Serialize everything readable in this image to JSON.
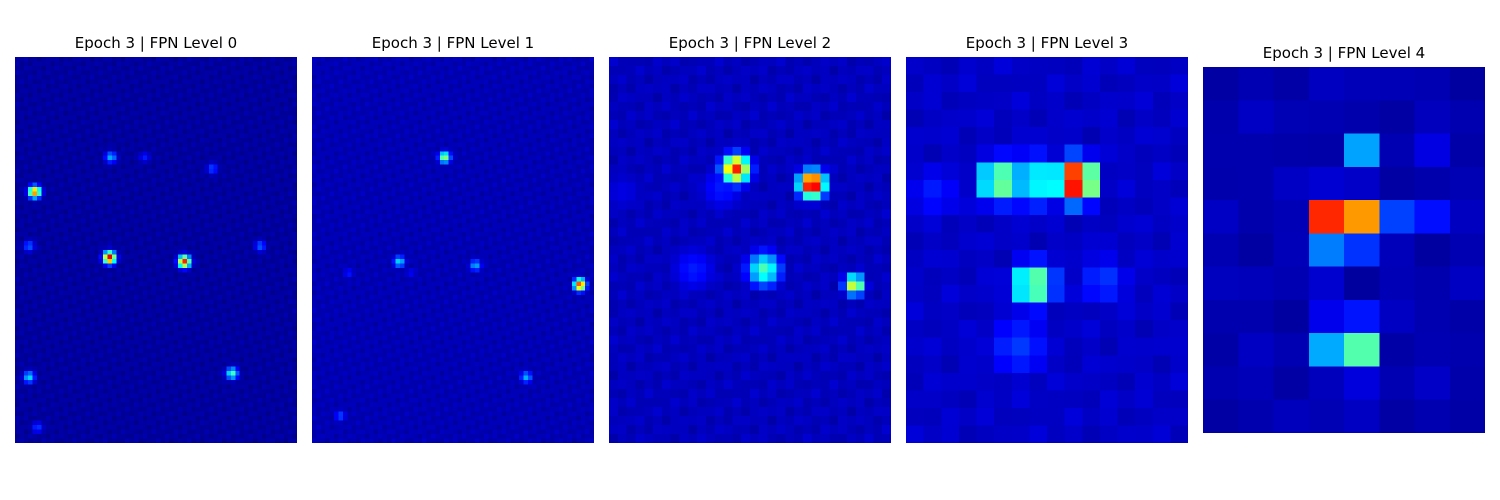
{
  "chart_data": [
    {
      "type": "heatmap",
      "title": "Epoch 3 | FPN Level 0",
      "colormap": "jet",
      "background_value": 0.03,
      "grid": false,
      "blobs": [
        {
          "x": 0.07,
          "y": 0.35,
          "value": 0.78
        },
        {
          "x": 0.335,
          "y": 0.52,
          "value": 0.92
        },
        {
          "x": 0.6,
          "y": 0.53,
          "value": 0.85
        },
        {
          "x": 0.77,
          "y": 0.82,
          "value": 0.45
        },
        {
          "x": 0.05,
          "y": 0.83,
          "value": 0.35
        },
        {
          "x": 0.34,
          "y": 0.26,
          "value": 0.3
        },
        {
          "x": 0.46,
          "y": 0.26,
          "value": 0.15
        },
        {
          "x": 0.05,
          "y": 0.49,
          "value": 0.22
        },
        {
          "x": 0.87,
          "y": 0.49,
          "value": 0.22
        },
        {
          "x": 0.7,
          "y": 0.29,
          "value": 0.2
        },
        {
          "x": 0.08,
          "y": 0.96,
          "value": 0.18
        }
      ]
    },
    {
      "type": "heatmap",
      "title": "Epoch 3 | FPN Level 1",
      "colormap": "jet",
      "background_value": 0.05,
      "grid": false,
      "blobs": [
        {
          "x": 0.47,
          "y": 0.26,
          "value": 0.55
        },
        {
          "x": 0.31,
          "y": 0.53,
          "value": 0.35
        },
        {
          "x": 0.58,
          "y": 0.54,
          "value": 0.3
        },
        {
          "x": 0.95,
          "y": 0.59,
          "value": 0.85
        },
        {
          "x": 0.76,
          "y": 0.83,
          "value": 0.3
        },
        {
          "x": 0.1,
          "y": 0.93,
          "value": 0.2
        },
        {
          "x": 0.13,
          "y": 0.56,
          "value": 0.15
        },
        {
          "x": 0.35,
          "y": 0.56,
          "value": 0.12
        }
      ]
    },
    {
      "type": "heatmap",
      "title": "Epoch 3 | FPN Level 2",
      "colormap": "jet",
      "rows": 43,
      "cols": 32,
      "background_value": 0.06,
      "grid": false,
      "blobs": [
        {
          "x": 0.45,
          "y": 0.29,
          "value": 0.85,
          "r": 1.6
        },
        {
          "x": 0.72,
          "y": 0.33,
          "value": 1.0,
          "r": 1.5
        },
        {
          "x": 0.55,
          "y": 0.55,
          "value": 0.45,
          "r": 2.0
        },
        {
          "x": 0.87,
          "y": 0.59,
          "value": 0.62,
          "r": 1.2
        },
        {
          "x": 0.3,
          "y": 0.55,
          "value": 0.15,
          "r": 3
        },
        {
          "x": 0.4,
          "y": 0.34,
          "value": 0.15,
          "r": 3
        },
        {
          "x": 0.05,
          "y": 0.35,
          "value": 0.1,
          "r": 3
        }
      ]
    },
    {
      "type": "heatmap",
      "title": "Epoch 3 | FPN Level 3",
      "colormap": "jet",
      "rows": 22,
      "cols": 16,
      "background_value": 0.07,
      "grid": false,
      "blobs": [
        {
          "x": 0.33,
          "y": 0.32,
          "value": 0.55,
          "r": 1.3
        },
        {
          "x": 0.6,
          "y": 0.32,
          "value": 1.0,
          "r": 1.2
        },
        {
          "x": 0.45,
          "y": 0.32,
          "value": 0.42,
          "r": 1.5
        },
        {
          "x": 0.45,
          "y": 0.59,
          "value": 0.55,
          "r": 1.3
        },
        {
          "x": 0.4,
          "y": 0.75,
          "value": 0.18,
          "r": 2.2
        },
        {
          "x": 0.7,
          "y": 0.58,
          "value": 0.18,
          "r": 1.8
        },
        {
          "x": 0.1,
          "y": 0.35,
          "value": 0.15,
          "r": 2
        }
      ]
    },
    {
      "type": "heatmap",
      "title": "Epoch 3 | FPN Level 4",
      "colormap": "jet",
      "rows": 11,
      "cols": 8,
      "background_value": 0.05,
      "grid": false,
      "blobs": [
        {
          "x": 0.44,
          "y": 0.39,
          "value": 1.0,
          "r": 0.5
        },
        {
          "x": 0.55,
          "y": 0.39,
          "value": 0.9,
          "r": 0.5
        },
        {
          "x": 0.64,
          "y": 0.39,
          "value": 0.4,
          "r": 0.5
        },
        {
          "x": 0.55,
          "y": 0.25,
          "value": 0.38,
          "r": 0.5
        },
        {
          "x": 0.55,
          "y": 0.8,
          "value": 0.68,
          "r": 0.5
        },
        {
          "x": 0.44,
          "y": 0.8,
          "value": 0.42,
          "r": 0.5
        },
        {
          "x": 0.44,
          "y": 0.48,
          "value": 0.3,
          "r": 0.5
        },
        {
          "x": 0.55,
          "y": 0.48,
          "value": 0.22,
          "r": 0.5
        },
        {
          "x": 0.44,
          "y": 0.64,
          "value": 0.25,
          "r": 0.5
        },
        {
          "x": 0.55,
          "y": 0.71,
          "value": 0.22,
          "r": 0.5
        },
        {
          "x": 0.84,
          "y": 0.39,
          "value": 0.2,
          "r": 0.5
        },
        {
          "x": 0.84,
          "y": 0.25,
          "value": 0.15,
          "r": 0.5
        }
      ]
    }
  ]
}
